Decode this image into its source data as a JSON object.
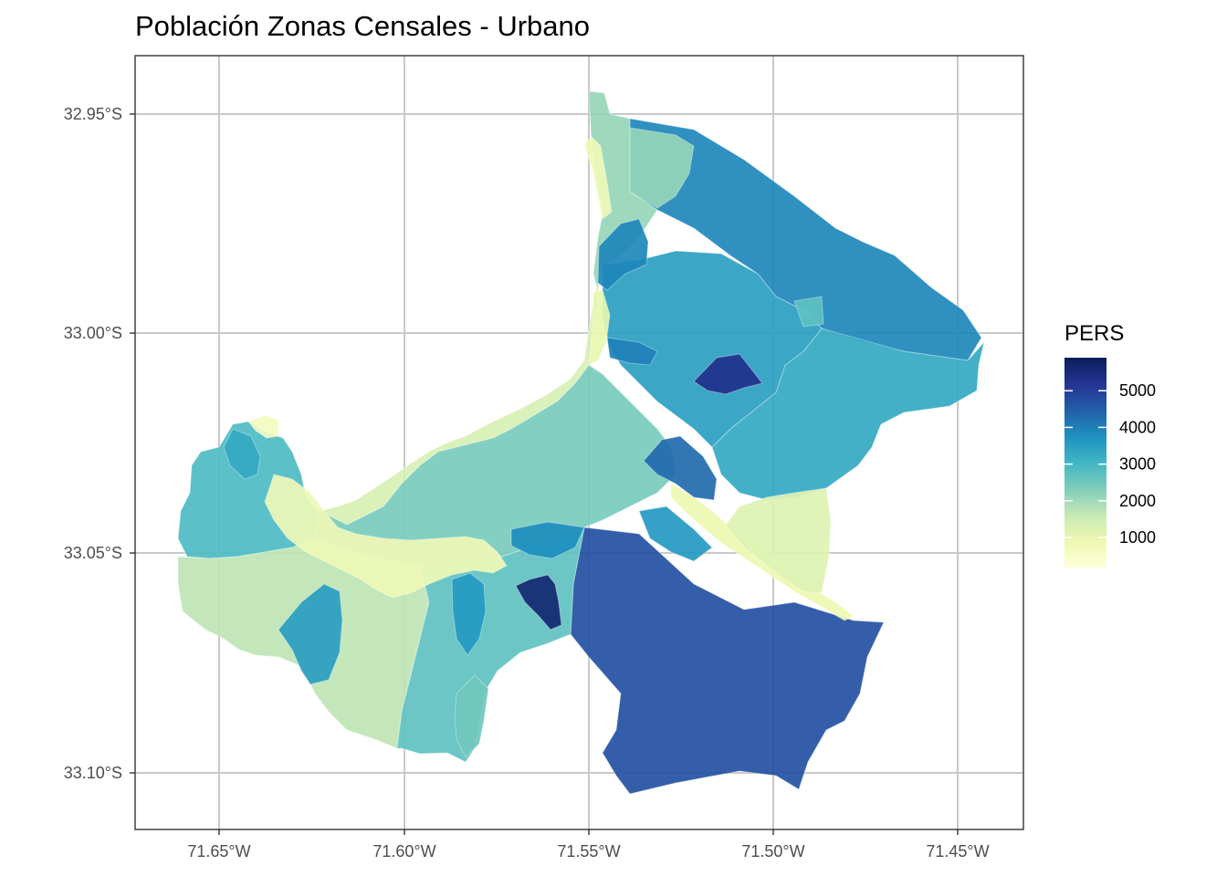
{
  "chart_data": {
    "type": "choropleth-map",
    "title": "Población Zonas Censales - Urbano",
    "xlabel": "",
    "ylabel": "",
    "x_ticks": [
      "71.65°W",
      "71.60°W",
      "71.55°W",
      "71.50°W",
      "71.45°W"
    ],
    "y_ticks": [
      "32.95°S",
      "33.00°S",
      "33.05°S",
      "33.10°S"
    ],
    "x_range_deg_w": [
      71.672,
      71.432
    ],
    "y_range_deg_s": [
      32.931,
      33.113
    ],
    "grid": true,
    "legend": {
      "title": "PERS",
      "position": "right",
      "breaks": [
        5000,
        4000,
        3000,
        2000,
        1000
      ],
      "labels": [
        "5000",
        "4000",
        "3000",
        "2000",
        "1000"
      ],
      "min": 180,
      "max": 5900,
      "palette": [
        "#ffffd9",
        "#edf8b1",
        "#c7e9b4",
        "#7fcdbb",
        "#41b6c4",
        "#1d91c0",
        "#225ea8",
        "#253494",
        "#081d58"
      ]
    },
    "zones": [
      {
        "id": "sur-grande",
        "pers": 4700
      },
      {
        "id": "nor-oriente",
        "pers": 3900
      },
      {
        "id": "oriente",
        "pers": 3300
      },
      {
        "id": "centro-norte",
        "pers": 3500
      },
      {
        "id": "costa-norte",
        "pers": 2100
      },
      {
        "id": "borde-costero",
        "pers": 1300
      },
      {
        "id": "cerros-oeste",
        "pers": 2400
      },
      {
        "id": "punta-oeste",
        "pers": 2900
      },
      {
        "id": "sur-oeste",
        "pers": 1700
      },
      {
        "id": "centro-sur",
        "pers": 2700
      },
      {
        "id": "plan-costero",
        "pers": 800
      },
      {
        "id": "corredor-este",
        "pers": 900
      },
      {
        "id": "sureste",
        "pers": 1200
      },
      {
        "id": "alto-dense",
        "pers": 5300
      },
      {
        "id": "sur-dense",
        "pers": 5600
      },
      {
        "id": "norte-a",
        "pers": 3900
      },
      {
        "id": "norte-b",
        "pers": 2100
      },
      {
        "id": "centro-a",
        "pers": 4300
      },
      {
        "id": "centro-b",
        "pers": 3800
      },
      {
        "id": "cerro-a",
        "pers": 3500
      },
      {
        "id": "cerro-b",
        "pers": 3300
      },
      {
        "id": "plan-a",
        "pers": 600
      },
      {
        "id": "plan-b",
        "pers": 800
      },
      {
        "id": "sur-a",
        "pers": 3600
      },
      {
        "id": "sur-b",
        "pers": 2500
      },
      {
        "id": "centro-c",
        "pers": 4000
      },
      {
        "id": "este-a",
        "pers": 2700
      },
      {
        "id": "este-b",
        "pers": 3600
      },
      {
        "id": "faja-costa",
        "pers": 1000
      }
    ]
  }
}
